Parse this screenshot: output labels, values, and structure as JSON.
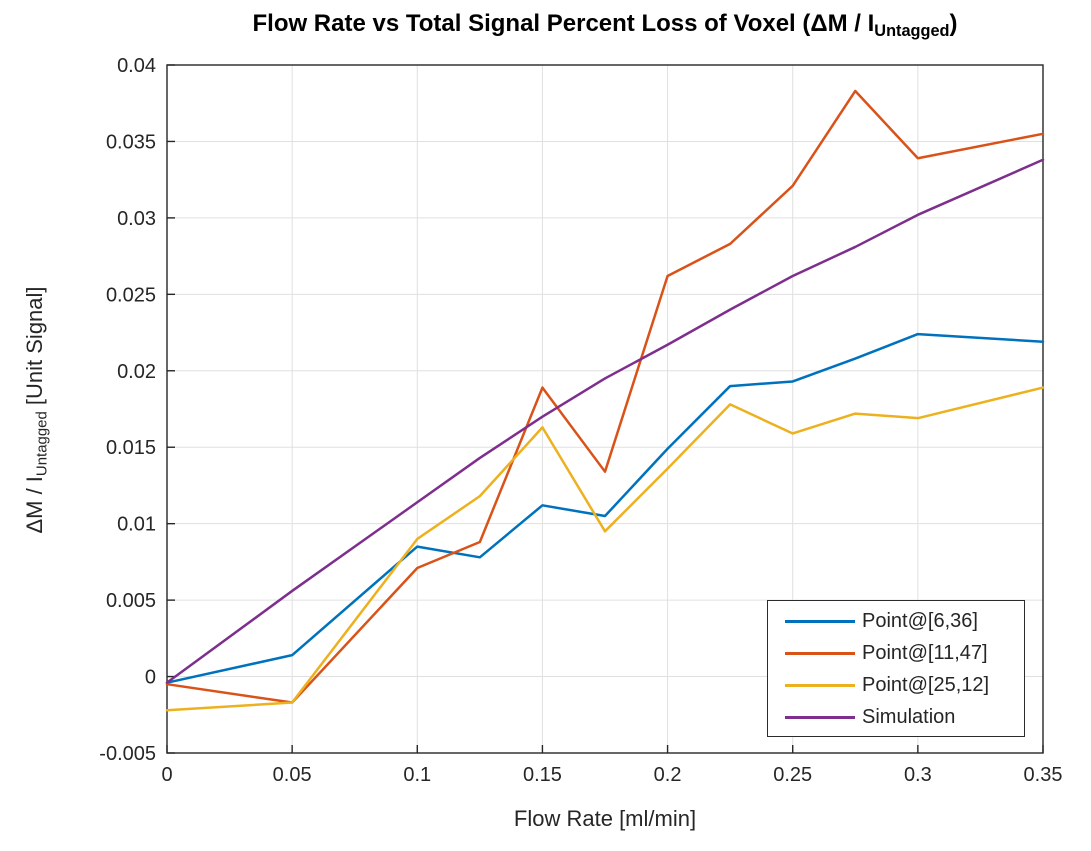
{
  "chart_data": {
    "type": "line",
    "title": {
      "main": "Flow Rate vs Total Signal Percent Loss of Voxel (ΔM / I",
      "subscript": "Untagged",
      "suffix": ")"
    },
    "xlabel": "Flow Rate [ml/min]",
    "ylabel": {
      "main": "ΔM / I",
      "subscript": "Untagged",
      "suffix": " [Unit Signal]"
    },
    "xlim": [
      0,
      0.35
    ],
    "ylim": [
      -0.005,
      0.04
    ],
    "xticks": [
      0,
      0.05,
      0.1,
      0.15,
      0.2,
      0.25,
      0.3,
      0.35
    ],
    "yticks": [
      -0.005,
      0,
      0.005,
      0.01,
      0.015,
      0.02,
      0.025,
      0.03,
      0.035,
      0.04
    ],
    "grid": true,
    "legend_position": "bottom-right",
    "x": [
      0,
      0.05,
      0.1,
      0.125,
      0.15,
      0.175,
      0.2,
      0.225,
      0.25,
      0.275,
      0.3,
      0.35
    ],
    "series": [
      {
        "name": "Point@[6,36]",
        "color": "#0072BD",
        "values": [
          -0.0004,
          0.0014,
          0.0085,
          0.0078,
          0.0112,
          0.0105,
          0.0149,
          0.019,
          0.0193,
          0.0208,
          0.0224,
          0.0219
        ]
      },
      {
        "name": "Point@[11,47]",
        "color": "#D95319",
        "values": [
          -0.0005,
          -0.0017,
          0.0071,
          0.0088,
          0.0189,
          0.0134,
          0.0262,
          0.0283,
          0.0321,
          0.0383,
          0.0339,
          0.0355
        ]
      },
      {
        "name": "Point@[25,12]",
        "color": "#EDB120",
        "values": [
          -0.0022,
          -0.0017,
          0.009,
          0.0118,
          0.0163,
          0.0095,
          0.0136,
          0.0178,
          0.0159,
          0.0172,
          0.0169,
          0.0189
        ]
      },
      {
        "name": "Simulation",
        "color": "#7E2F8E",
        "values": [
          -0.0004,
          0.0056,
          0.0114,
          0.0143,
          0.017,
          0.0195,
          0.0217,
          0.024,
          0.0262,
          0.0281,
          0.0302,
          0.0338
        ]
      }
    ],
    "colors": {
      "frame": "#262626",
      "grid": "#E0E0E0",
      "background": "#FFFFFF"
    }
  }
}
